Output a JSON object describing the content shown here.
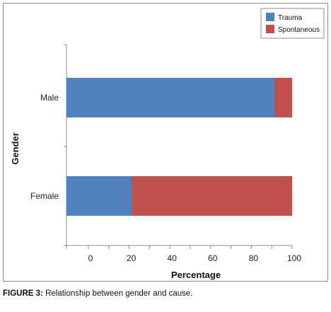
{
  "chart_data": {
    "type": "bar",
    "orientation": "horizontal",
    "stacked": true,
    "categories": [
      "Male",
      "Female"
    ],
    "series": [
      {
        "name": "Trauma",
        "values": [
          91,
          21
        ],
        "color": "#4f81bd"
      },
      {
        "name": "Spontaneous",
        "values": [
          9,
          79
        ],
        "color": "#c0504d"
      }
    ],
    "title": "",
    "xlabel": "Percentage",
    "ylabel": "Gender",
    "xticks": [
      0,
      20,
      40,
      60,
      80,
      100
    ],
    "xlim": [
      0,
      100
    ],
    "grid": false,
    "legend_position": "top-right"
  },
  "caption": {
    "label": "FIGURE 3:",
    "text": " Relationship between gender and cause."
  }
}
